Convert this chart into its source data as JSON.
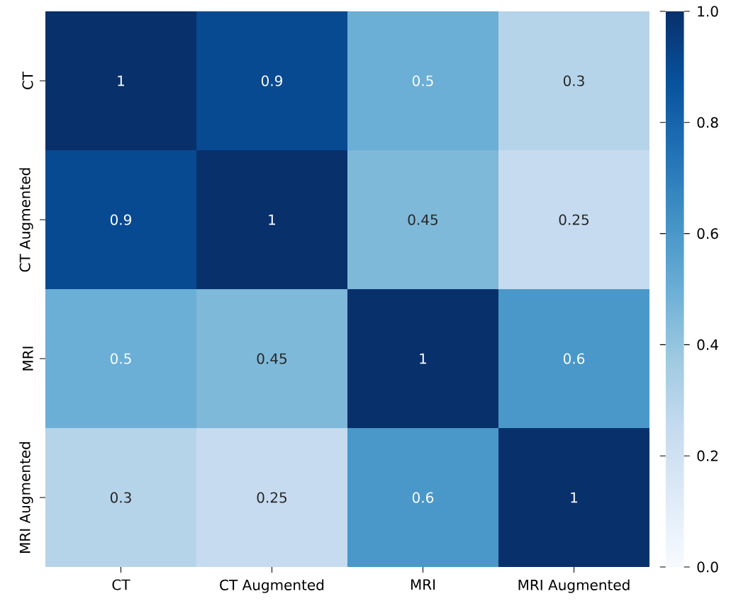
{
  "chart_data": {
    "type": "heatmap",
    "categories": [
      "CT",
      "CT Augmented",
      "MRI",
      "MRI Augmented"
    ],
    "y_categories": [
      "CT",
      "CT Augmented",
      "MRI",
      "MRI Augmented"
    ],
    "cells": [
      [
        1,
        0.9,
        0.5,
        0.3
      ],
      [
        0.9,
        1,
        0.45,
        0.25
      ],
      [
        0.5,
        0.45,
        1,
        0.6
      ],
      [
        0.3,
        0.25,
        0.6,
        1
      ]
    ],
    "data_labels": true,
    "clim": [
      0,
      1
    ],
    "cticks": [
      {
        "value": 0,
        "label": "0.0"
      },
      {
        "value": 0.2,
        "label": "0.2"
      },
      {
        "value": 0.4,
        "label": "0.4"
      },
      {
        "value": 0.6,
        "label": "0.6"
      },
      {
        "value": 0.8,
        "label": "0.8"
      },
      {
        "value": 1,
        "label": "1.0"
      }
    ]
  }
}
